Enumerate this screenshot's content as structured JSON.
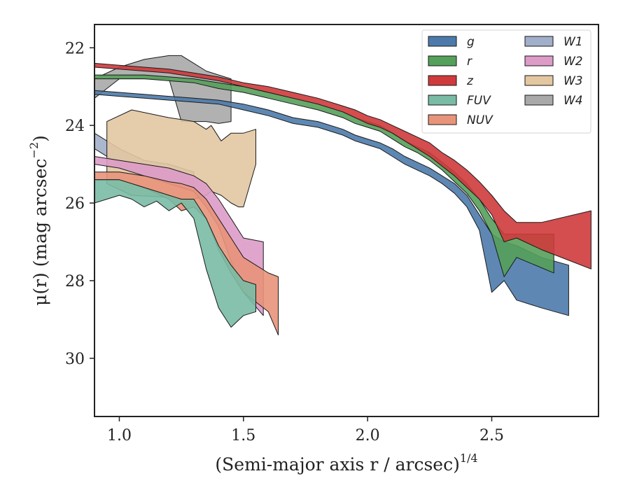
{
  "chart_data": {
    "type": "area",
    "title": "",
    "xlabel": "(Semi-major axis r / arcsec)",
    "xlabel_exponent": "1/4",
    "ylabel": "μ(r) (mag arcsec",
    "ylabel_exponent": "−2",
    "ylabel_close": ")",
    "xlim": [
      0.9,
      2.93
    ],
    "ylim": [
      31.5,
      21.4
    ],
    "y_inverted": true,
    "xticks": [
      1.0,
      1.5,
      2.0,
      2.5
    ],
    "xtick_labels": [
      "1.0",
      "1.5",
      "2.0",
      "2.5"
    ],
    "yticks": [
      22,
      24,
      26,
      28,
      30
    ],
    "ytick_labels": [
      "22",
      "24",
      "26",
      "28",
      "30"
    ],
    "grid": false,
    "legend": {
      "position": "top-right",
      "columns": 2
    },
    "series": [
      {
        "name": "W4",
        "color": "#a9a9a9",
        "x": [
          0.9,
          1.0,
          1.1,
          1.2,
          1.25,
          1.3,
          1.35,
          1.4,
          1.45
        ],
        "top": [
          22.8,
          22.5,
          22.3,
          22.2,
          22.2,
          22.4,
          22.6,
          22.7,
          22.8
        ],
        "bottom": [
          23.3,
          22.8,
          22.8,
          22.8,
          23.9,
          23.9,
          23.9,
          23.95,
          23.9
        ]
      },
      {
        "name": "g",
        "color": "#4c7bab",
        "x": [
          0.9,
          1.0,
          1.1,
          1.2,
          1.3,
          1.4,
          1.5,
          1.6,
          1.7,
          1.8,
          1.9,
          1.95,
          2.0,
          2.05,
          2.1,
          2.15,
          2.2,
          2.25,
          2.3,
          2.35,
          2.4,
          2.45,
          2.5,
          2.55,
          2.6,
          2.7,
          2.81
        ],
        "top": [
          23.1,
          23.15,
          23.2,
          23.25,
          23.3,
          23.35,
          23.45,
          23.6,
          23.8,
          23.9,
          24.1,
          24.25,
          24.35,
          24.45,
          24.6,
          24.8,
          24.95,
          25.1,
          25.3,
          25.5,
          25.8,
          26.3,
          26.8,
          27.0,
          27.1,
          27.4,
          27.6
        ],
        "bottom": [
          23.2,
          23.25,
          23.3,
          23.35,
          23.4,
          23.45,
          23.6,
          23.75,
          23.95,
          24.05,
          24.25,
          24.4,
          24.5,
          24.6,
          24.8,
          25.0,
          25.15,
          25.3,
          25.5,
          25.75,
          26.1,
          26.7,
          28.3,
          28.0,
          28.5,
          28.7,
          28.9
        ]
      },
      {
        "name": "r",
        "color": "#55a05a",
        "x": [
          0.9,
          1.0,
          1.1,
          1.2,
          1.3,
          1.4,
          1.5,
          1.6,
          1.7,
          1.8,
          1.9,
          1.95,
          2.0,
          2.05,
          2.1,
          2.15,
          2.2,
          2.25,
          2.3,
          2.35,
          2.4,
          2.45,
          2.5,
          2.55,
          2.6,
          2.75
        ],
        "top": [
          22.7,
          22.7,
          22.7,
          22.75,
          22.8,
          22.9,
          23.0,
          23.15,
          23.3,
          23.45,
          23.65,
          23.8,
          23.9,
          24.0,
          24.2,
          24.4,
          24.55,
          24.7,
          24.95,
          25.2,
          25.5,
          25.9,
          26.4,
          26.8,
          26.8,
          26.8
        ],
        "bottom": [
          22.8,
          22.8,
          22.8,
          22.85,
          22.9,
          23.05,
          23.15,
          23.3,
          23.45,
          23.6,
          23.8,
          23.95,
          24.05,
          24.15,
          24.35,
          24.55,
          24.7,
          24.9,
          25.15,
          25.45,
          25.75,
          26.2,
          26.8,
          27.9,
          27.4,
          27.8
        ]
      },
      {
        "name": "z",
        "color": "#cf3a3c",
        "x": [
          0.9,
          1.0,
          1.1,
          1.2,
          1.3,
          1.4,
          1.5,
          1.6,
          1.7,
          1.8,
          1.9,
          1.95,
          2.0,
          2.05,
          2.1,
          2.15,
          2.2,
          2.25,
          2.3,
          2.35,
          2.4,
          2.45,
          2.5,
          2.55,
          2.6,
          2.7,
          2.9
        ],
        "top": [
          22.4,
          22.45,
          22.5,
          22.55,
          22.65,
          22.75,
          22.9,
          23.0,
          23.15,
          23.3,
          23.5,
          23.6,
          23.75,
          23.85,
          24.0,
          24.15,
          24.3,
          24.45,
          24.7,
          24.9,
          25.15,
          25.45,
          25.8,
          26.2,
          26.5,
          26.5,
          26.2
        ],
        "bottom": [
          22.5,
          22.55,
          22.6,
          22.65,
          22.75,
          22.85,
          23.0,
          23.15,
          23.3,
          23.45,
          23.65,
          23.8,
          23.95,
          24.05,
          24.2,
          24.4,
          24.6,
          24.8,
          25.05,
          25.3,
          25.6,
          25.9,
          26.3,
          27.0,
          26.9,
          27.2,
          27.7
        ]
      },
      {
        "name": "W1",
        "color": "#a2afca",
        "x": [
          0.9,
          1.0,
          1.1,
          1.2,
          1.25,
          1.3
        ],
        "top": [
          24.2,
          24.6,
          24.9,
          25.0,
          25.1,
          25.2
        ],
        "bottom": [
          24.6,
          25.0,
          25.3,
          25.4,
          25.5,
          25.6
        ]
      },
      {
        "name": "W3",
        "color": "#e2c7a1",
        "x": [
          0.95,
          1.05,
          1.2,
          1.25,
          1.3,
          1.35,
          1.37,
          1.41,
          1.45,
          1.48,
          1.5,
          1.55
        ],
        "top": [
          23.9,
          23.6,
          23.8,
          23.85,
          23.9,
          24.1,
          24.0,
          24.4,
          24.2,
          24.2,
          24.2,
          24.1
        ],
        "bottom": [
          25.5,
          25.8,
          25.85,
          25.9,
          25.9,
          25.8,
          25.7,
          25.8,
          26.0,
          26.1,
          26.1,
          25.0
        ]
      },
      {
        "name": "W2",
        "color": "#dd9bc8",
        "x": [
          0.9,
          1.0,
          1.1,
          1.2,
          1.3,
          1.35,
          1.4,
          1.45,
          1.5,
          1.58
        ],
        "top": [
          24.8,
          24.9,
          25.0,
          25.1,
          25.3,
          25.5,
          25.9,
          26.4,
          26.9,
          27.0
        ],
        "bottom": [
          25.0,
          25.1,
          25.3,
          25.5,
          25.7,
          26.1,
          26.6,
          27.5,
          28.3,
          28.9
        ]
      },
      {
        "name": "NUV",
        "color": "#e8947a",
        "x": [
          0.9,
          1.0,
          1.1,
          1.2,
          1.25,
          1.3,
          1.35,
          1.4,
          1.45,
          1.5,
          1.6,
          1.64
        ],
        "top": [
          25.2,
          25.2,
          25.3,
          25.45,
          25.5,
          25.6,
          25.9,
          26.4,
          26.9,
          27.4,
          27.8,
          27.9
        ],
        "bottom": [
          25.4,
          25.4,
          25.6,
          25.9,
          26.2,
          26.1,
          26.4,
          27.2,
          27.8,
          28.3,
          28.8,
          29.4
        ]
      },
      {
        "name": "FUV",
        "color": "#79bba4",
        "x": [
          0.9,
          1.0,
          1.05,
          1.1,
          1.15,
          1.2,
          1.25,
          1.3,
          1.35,
          1.4,
          1.45,
          1.5,
          1.55
        ],
        "top": [
          25.4,
          25.4,
          25.5,
          25.6,
          25.7,
          25.8,
          25.9,
          25.9,
          26.4,
          27.1,
          27.6,
          28.0,
          28.1
        ],
        "bottom": [
          26.0,
          25.8,
          25.9,
          26.1,
          25.95,
          26.2,
          26.0,
          26.4,
          27.7,
          28.7,
          29.2,
          28.9,
          28.8
        ]
      }
    ]
  }
}
